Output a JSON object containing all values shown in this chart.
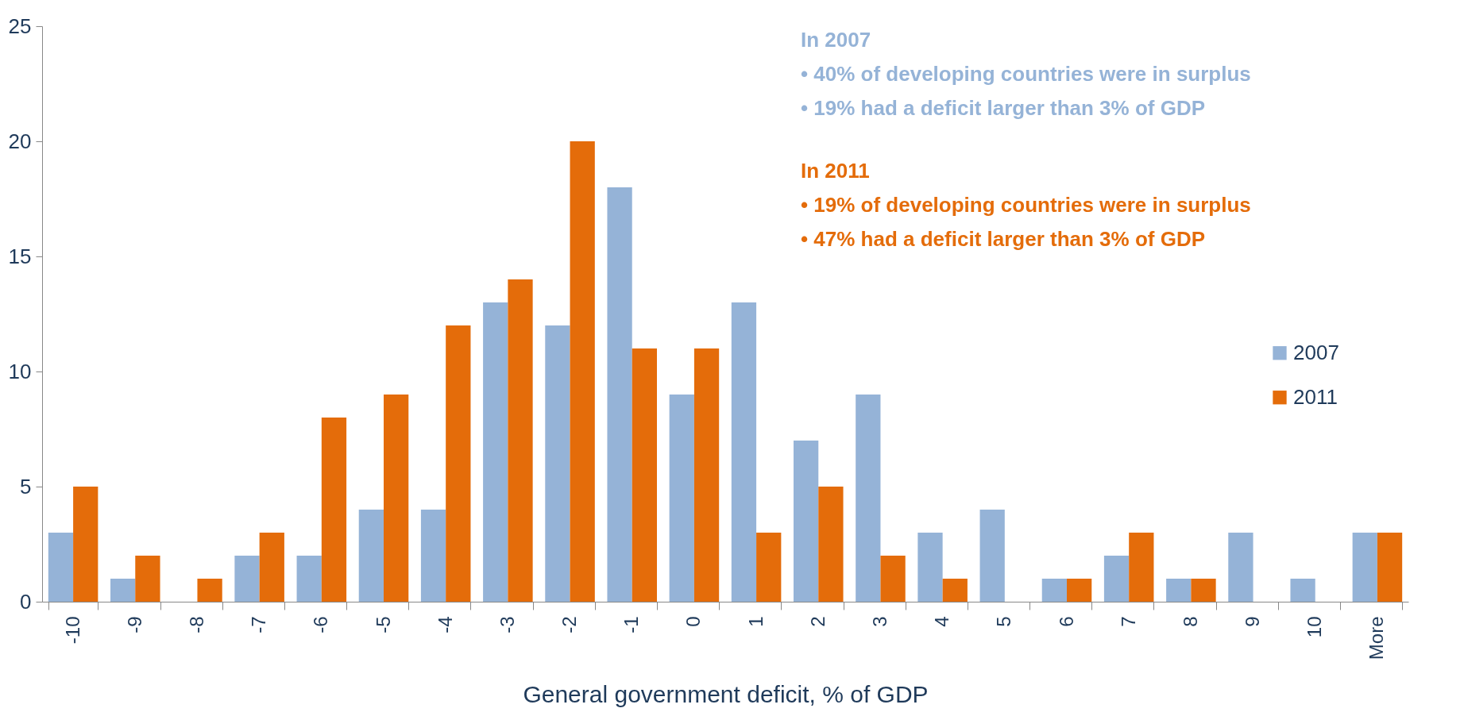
{
  "chart_data": {
    "type": "bar",
    "xlabel": "General government deficit, % of GDP",
    "categories": [
      "-10",
      "-9",
      "-8",
      "-7",
      "-6",
      "-5",
      "-4",
      "-3",
      "-2",
      "-1",
      "0",
      "1",
      "2",
      "3",
      "4",
      "5",
      "6",
      "7",
      "8",
      "9",
      "10",
      "More"
    ],
    "series": [
      {
        "name": "2007",
        "color": "#95b3d7",
        "values": [
          3,
          1,
          0,
          2,
          2,
          4,
          4,
          13,
          12,
          18,
          9,
          13,
          7,
          9,
          3,
          4,
          1,
          2,
          1,
          3,
          1,
          3
        ]
      },
      {
        "name": "2011",
        "color": "#e46c0a",
        "values": [
          5,
          2,
          1,
          3,
          8,
          9,
          12,
          14,
          20,
          11,
          11,
          3,
          5,
          2,
          1,
          0,
          1,
          3,
          1,
          0,
          0,
          3
        ]
      }
    ],
    "ylim": [
      0,
      25
    ],
    "yticks": [
      0,
      5,
      10,
      15,
      20,
      25
    ],
    "grid": false,
    "legend": "right",
    "annotations": [
      "In 2007",
      "• 40% of developing countries were in surplus",
      "• 19% had a deficit larger than 3% of GDP",
      "In 2011",
      "• 19% of developing countries were in surplus",
      "• 47% had a deficit larger than 3% of GDP"
    ]
  }
}
